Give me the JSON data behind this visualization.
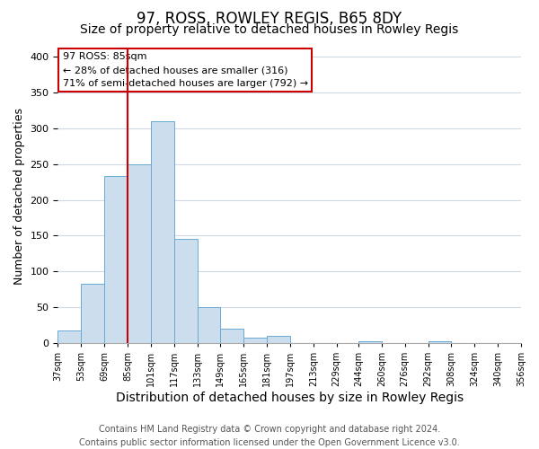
{
  "title": "97, ROSS, ROWLEY REGIS, B65 8DY",
  "subtitle": "Size of property relative to detached houses in Rowley Regis",
  "xlabel": "Distribution of detached houses by size in Rowley Regis",
  "ylabel": "Number of detached properties",
  "bar_edges": [
    37,
    53,
    69,
    85,
    101,
    117,
    133,
    149,
    165,
    181,
    197,
    213,
    229,
    244,
    260,
    276,
    292,
    308,
    324,
    340,
    356
  ],
  "bar_heights": [
    18,
    83,
    233,
    250,
    310,
    145,
    50,
    20,
    7,
    10,
    0,
    0,
    0,
    3,
    0,
    0,
    2,
    0,
    0,
    0
  ],
  "bar_color": "#ccdded",
  "bar_edgecolor": "#6aaad4",
  "property_line_x": 85,
  "property_line_color": "#cc0000",
  "annotation_title": "97 ROSS: 85sqm",
  "annotation_line1": "← 28% of detached houses are smaller (316)",
  "annotation_line2": "71% of semi-detached houses are larger (792) →",
  "annotation_box_facecolor": "white",
  "annotation_box_edgecolor": "#cc0000",
  "ylim": [
    0,
    410
  ],
  "yticks": [
    0,
    50,
    100,
    150,
    200,
    250,
    300,
    350,
    400
  ],
  "tick_labels": [
    "37sqm",
    "53sqm",
    "69sqm",
    "85sqm",
    "101sqm",
    "117sqm",
    "133sqm",
    "149sqm",
    "165sqm",
    "181sqm",
    "197sqm",
    "213sqm",
    "229sqm",
    "244sqm",
    "260sqm",
    "276sqm",
    "292sqm",
    "308sqm",
    "324sqm",
    "340sqm",
    "356sqm"
  ],
  "footer_line1": "Contains HM Land Registry data © Crown copyright and database right 2024.",
  "footer_line2": "Contains public sector information licensed under the Open Government Licence v3.0.",
  "title_fontsize": 12,
  "subtitle_fontsize": 10,
  "xlabel_fontsize": 10,
  "ylabel_fontsize": 9,
  "tick_fontsize": 7,
  "footer_fontsize": 7,
  "background_color": "#ffffff",
  "grid_color": "#d0d8e8"
}
